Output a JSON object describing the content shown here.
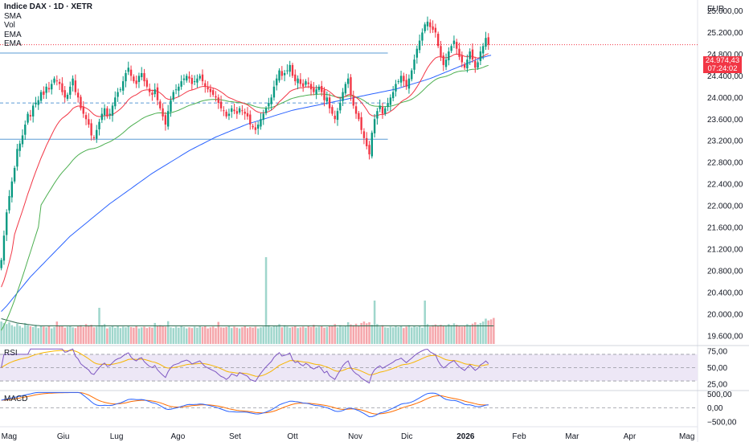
{
  "legend": {
    "symbol": "Indice DAX · 1D · XETR",
    "indicators": [
      "SMA",
      "Vol",
      "EMA",
      "EMA"
    ]
  },
  "price_axis": {
    "currency": "EUR",
    "last_price": "24.974,43",
    "countdown": "07:24:02"
  },
  "panes": {
    "rsi_label": "RSI",
    "macd_label": "MACD"
  },
  "colors": {
    "up": "#089981",
    "down": "#f23645",
    "vol_up": "#9fd6cc",
    "vol_down": "#f5a6ab",
    "ema_fast": "#f23645",
    "ema_slow": "#4caf50",
    "sma": "#2962ff",
    "vol_ma": "#2e6b4f",
    "level_line": "#5b9bd5",
    "rsi_line": "#7e57c2",
    "rsi_ma": "#f7b500",
    "rsi_band": "#ede7f6",
    "macd_line": "#2962ff",
    "macd_signal": "#ff6d00"
  },
  "chart_data": {
    "type": "candlestick",
    "title": "Indice DAX · 1D · XETR",
    "ylim": [
      19450,
      25800
    ],
    "y_ticks": [
      19600,
      20000,
      20400,
      20800,
      21200,
      21600,
      22000,
      22400,
      22800,
      23200,
      23600,
      24000,
      24400,
      24800,
      25200,
      25600
    ],
    "y_tick_labels": [
      "19.600,00",
      "20.000,00",
      "20.400,00",
      "20.800,00",
      "21.200,00",
      "21.600,00",
      "22.000,00",
      "22.400,00",
      "22.800,00",
      "23.200,00",
      "23.600,00",
      "24.000,00",
      "24.400,00",
      "24.800,00",
      "25.200,00",
      "25.600,00"
    ],
    "x_month_labels": [
      "Mag",
      "Giu",
      "Lug",
      "Ago",
      "Set",
      "Ott",
      "Nov",
      "Dic",
      "2026",
      "Feb",
      "Mar",
      "Apr",
      "Mag"
    ],
    "month_start_index": [
      0,
      21,
      41,
      64,
      86,
      108,
      131,
      151,
      172,
      193,
      213,
      235,
      256
    ],
    "total_slots": 264,
    "closes": [
      21000,
      21450,
      21880,
      22180,
      22450,
      22700,
      23050,
      23150,
      23300,
      23500,
      23700,
      23650,
      23850,
      23900,
      23950,
      24100,
      24050,
      24200,
      24150,
      24250,
      24350,
      24300,
      24250,
      24100,
      24000,
      24050,
      24200,
      24350,
      24100,
      24000,
      23800,
      23700,
      23600,
      23500,
      23300,
      23250,
      23400,
      23550,
      23700,
      23800,
      23650,
      23700,
      23850,
      24000,
      24100,
      24150,
      24300,
      24450,
      24550,
      24400,
      24300,
      24250,
      24400,
      24450,
      24300,
      24200,
      24100,
      24050,
      24150,
      23950,
      23800,
      23650,
      23500,
      23750,
      23950,
      24100,
      24150,
      24200,
      24300,
      24350,
      24400,
      24350,
      24250,
      24300,
      24350,
      24400,
      24300,
      24200,
      24150,
      24100,
      24050,
      24000,
      23900,
      23800,
      23750,
      23650,
      23700,
      23800,
      23750,
      23700,
      23800,
      23750,
      23700,
      23650,
      23500,
      23450,
      23400,
      23500,
      23600,
      23700,
      23800,
      23900,
      24000,
      24200,
      24350,
      24500,
      24400,
      24450,
      24500,
      24600,
      24400,
      24300,
      24350,
      24250,
      24200,
      24300,
      24250,
      24150,
      24100,
      24150,
      24200,
      24100,
      23950,
      24000,
      23800,
      23700,
      23600,
      23750,
      23900,
      24100,
      24250,
      24350,
      24050,
      23850,
      23700,
      23600,
      23400,
      23250,
      23100,
      22950,
      23350,
      23600,
      23750,
      23850,
      23700,
      23800,
      23900,
      24000,
      24100,
      24250,
      24300,
      24400,
      24300,
      24200,
      24350,
      24500,
      24700,
      24900,
      25050,
      25200,
      25350,
      25400,
      25300,
      25250,
      25200,
      24950,
      24750,
      24600,
      24700,
      24850,
      24950,
      25050,
      24900,
      24750,
      24650,
      24550,
      24700,
      24850,
      24700,
      24550,
      24650,
      24850,
      24950,
      25100,
      24974.43
    ],
    "sma": [
      20050,
      20100,
      20150,
      20210,
      20270,
      20330,
      20390,
      20450,
      20510,
      20570,
      20630,
      20690,
      20740,
      20790,
      20840,
      20890,
      20940,
      20990,
      21040,
      21090,
      21140,
      21190,
      21240,
      21290,
      21340,
      21390,
      21440,
      21480,
      21520,
      21560,
      21600,
      21640,
      21680,
      21720,
      21760,
      21800,
      21840,
      21880,
      21920,
      21960,
      22000,
      22040,
      22075,
      22110,
      22145,
      22180,
      22215,
      22250,
      22285,
      22320,
      22355,
      22390,
      22425,
      22460,
      22495,
      22530,
      22565,
      22600,
      22630,
      22660,
      22690,
      22720,
      22750,
      22780,
      22810,
      22840,
      22870,
      22900,
      22930,
      22960,
      22990,
      23020,
      23045,
      23070,
      23095,
      23120,
      23145,
      23170,
      23195,
      23220,
      23245,
      23270,
      23290,
      23310,
      23330,
      23350,
      23370,
      23390,
      23410,
      23430,
      23450,
      23470,
      23490,
      23510,
      23525,
      23540,
      23555,
      23570,
      23585,
      23600,
      23615,
      23630,
      23645,
      23660,
      23675,
      23690,
      23705,
      23720,
      23735,
      23750,
      23765,
      23775,
      23785,
      23795,
      23805,
      23815,
      23825,
      23835,
      23845,
      23855,
      23865,
      23875,
      23885,
      23895,
      23905,
      23915,
      23925,
      23935,
      23945,
      23955,
      23965,
      23975,
      23985,
      23995,
      24005,
      24015,
      24025,
      24035,
      24045,
      24055,
      24065,
      24075,
      24085,
      24095,
      24105,
      24115,
      24125,
      24135,
      24145,
      24155,
      24170,
      24185,
      24200,
      24215,
      24230,
      24245,
      24260,
      24275,
      24290,
      24305,
      24320,
      24335,
      24350,
      24370,
      24390,
      24410,
      24430,
      24450,
      24470,
      24490,
      24510,
      24530,
      24550,
      24570,
      24590,
      24610,
      24630,
      24650,
      24670,
      24690,
      24710,
      24725,
      24740,
      24755,
      24770,
      24780
    ],
    "horizontal_levels": [
      {
        "price": 24820,
        "style": "solid",
        "from_index": 0,
        "to_index": 146
      },
      {
        "price": 23900,
        "style": "dashed",
        "from_index": 0,
        "to_index": 146
      },
      {
        "price": 23230,
        "style": "solid",
        "from_index": 0,
        "to_index": 146
      },
      {
        "price": 24974.43,
        "style": "dotted",
        "from_index": 0,
        "to_index": 246
      }
    ],
    "volume": {
      "values": [
        62,
        58,
        55,
        60,
        52,
        48,
        56,
        50,
        45,
        58,
        52,
        49,
        47,
        53,
        44,
        50,
        48,
        46,
        51,
        43,
        47,
        62,
        49,
        51,
        45,
        48,
        50,
        46,
        44,
        49,
        52,
        47,
        55,
        50,
        53,
        46,
        48,
        100,
        52,
        55,
        43,
        47,
        49,
        45,
        51,
        44,
        48,
        46,
        50,
        47,
        45,
        49,
        43,
        46,
        48,
        44,
        47,
        45,
        58,
        49,
        52,
        50,
        48,
        63,
        46,
        44,
        48,
        45,
        50,
        47,
        43,
        46,
        44,
        48,
        45,
        49,
        47,
        51,
        43,
        46,
        48,
        44,
        61,
        46,
        45,
        47,
        50,
        44,
        48,
        45,
        43,
        46,
        49,
        44,
        47,
        45,
        48,
        43,
        46,
        48,
        240,
        52,
        47,
        50,
        49,
        55,
        46,
        52,
        48,
        45,
        47,
        50,
        44,
        46,
        48,
        45,
        49,
        47,
        53,
        46,
        48,
        50,
        45,
        47,
        51,
        49,
        55,
        46,
        52,
        48,
        50,
        60,
        54,
        52,
        56,
        51,
        58,
        62,
        57,
        60,
        53,
        120,
        55,
        48,
        52,
        46,
        45,
        48,
        46,
        50,
        47,
        49,
        44,
        48,
        52,
        46,
        50,
        47,
        51,
        45,
        120,
        55,
        48,
        52,
        54,
        50,
        53,
        51,
        49,
        55,
        52,
        57,
        53,
        50,
        48,
        51,
        55,
        52,
        56,
        60,
        54,
        58,
        62,
        70,
        65,
        68,
        72
      ],
      "ma": [
        70,
        68,
        66,
        64,
        62,
        60,
        58,
        57,
        56,
        55,
        54,
        53,
        52,
        51,
        51,
        50,
        50,
        50,
        50,
        50,
        50,
        50,
        50,
        50,
        50,
        50,
        50,
        50,
        50,
        50,
        50,
        50,
        50,
        50,
        50,
        50,
        50,
        50,
        50,
        50,
        50,
        50,
        50,
        50,
        50,
        50,
        50,
        50,
        50,
        50,
        50,
        50,
        50,
        50,
        50,
        50,
        50,
        50,
        50,
        50,
        50,
        50,
        50,
        50,
        50,
        50,
        50,
        50,
        50,
        50,
        50,
        50,
        50,
        50,
        50,
        50,
        50,
        50,
        50,
        50,
        50,
        50,
        50,
        50,
        50,
        50,
        50,
        50,
        50,
        50,
        50,
        50,
        50,
        50,
        50,
        50,
        50,
        50,
        50,
        50,
        50,
        50,
        50,
        50,
        50,
        50,
        50,
        50,
        50,
        50,
        50,
        50,
        50,
        50,
        50,
        50,
        50,
        50,
        50,
        50,
        50,
        50,
        50,
        50,
        50,
        50,
        50,
        50,
        50,
        50,
        50,
        50,
        50,
        50,
        50,
        50,
        50,
        50,
        50,
        50,
        50,
        50,
        50,
        50,
        50,
        50,
        50,
        50,
        50,
        50,
        50,
        50,
        50,
        50,
        50,
        50,
        50,
        50,
        50,
        50,
        50,
        50,
        50,
        50,
        50,
        50,
        50,
        50,
        50,
        50,
        50,
        50,
        50,
        50,
        50,
        50,
        50,
        50,
        50,
        50,
        50,
        50,
        50,
        50,
        50,
        50,
        50
      ]
    },
    "rsi": {
      "y_tick_labels": [
        "75,00",
        "50,00",
        "25,00"
      ],
      "y_ticks": [
        75,
        50,
        25
      ],
      "ylim": [
        18,
        82
      ],
      "band": [
        30,
        70
      ]
    },
    "macd": {
      "y_tick_labels": [
        "500,00",
        "0,00",
        "−500,00"
      ],
      "y_ticks": [
        500,
        0,
        -500
      ],
      "ylim": [
        -650,
        600
      ]
    }
  }
}
